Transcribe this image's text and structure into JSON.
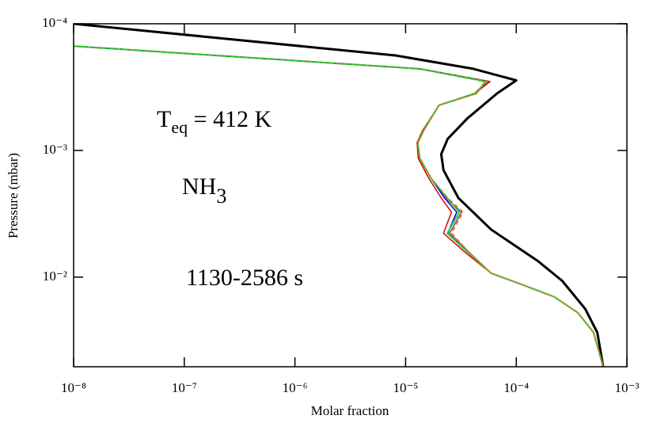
{
  "chart_data": {
    "type": "line",
    "xlabel": "Molar fraction",
    "ylabel": "Pressure (mbar)",
    "xscale": "log",
    "yscale": "log",
    "yinverted": true,
    "xlim": [
      1e-08,
      0.001
    ],
    "ylim": [
      0.0001,
      0.051
    ],
    "xticks": [
      {
        "value": 1e-08,
        "label": "10⁻⁸"
      },
      {
        "value": 1e-07,
        "label": "10⁻⁷"
      },
      {
        "value": 1e-06,
        "label": "10⁻⁶"
      },
      {
        "value": 1e-05,
        "label": "10⁻⁵"
      },
      {
        "value": 0.0001,
        "label": "10⁻⁴"
      },
      {
        "value": 0.001,
        "label": "10⁻³"
      }
    ],
    "yticks": [
      {
        "value": 0.0001,
        "label": "10⁻⁴"
      },
      {
        "value": 0.001,
        "label": "10⁻³"
      },
      {
        "value": 0.01,
        "label": "10⁻²"
      }
    ],
    "annotations": [
      {
        "parts": [
          "T",
          "eq",
          " = 412 K"
        ]
      },
      {
        "parts": [
          "NH",
          "3"
        ]
      },
      {
        "parts": [
          "1130-2586 s"
        ]
      }
    ],
    "series": [
      {
        "color": "#000000",
        "width": 3,
        "dash": false,
        "x": [
          1e-08,
          8.1e-06,
          4.1e-05,
          0.0001,
          6.7e-05,
          3.6e-05,
          2.4e-05,
          2.1e-05,
          2.2e-05,
          3e-05,
          5.9e-05,
          0.000158,
          0.00026,
          0.00042,
          0.00054,
          0.00061
        ],
        "values": [
          0.0001,
          0.000178,
          0.000227,
          0.00028,
          0.000355,
          0.00056,
          0.00081,
          0.00107,
          0.00143,
          0.00237,
          0.0042,
          0.0075,
          0.0107,
          0.0178,
          0.0274,
          0.051
        ]
      },
      {
        "color": "#7f6f8f",
        "width": 2,
        "dash": false,
        "x": [
          1e-08,
          1.34e-05,
          5.6e-05,
          4.3e-05,
          2e-05,
          1.45e-05,
          1.29e-05,
          1.34e-05,
          1.7e-05,
          2.3e-05,
          3.2e-05,
          2.5e-05,
          3.7e-05,
          5.9e-05,
          0.000114,
          0.00022,
          0.00036,
          0.0005,
          0.00061
        ],
        "values": [
          0.00015,
          0.000227,
          0.000286,
          0.000355,
          0.00044,
          0.0007,
          0.00087,
          0.00115,
          0.00166,
          0.00237,
          0.00307,
          0.0045,
          0.0063,
          0.0093,
          0.0115,
          0.0143,
          0.0191,
          0.0274,
          0.051
        ]
      },
      {
        "color": "#dd0000",
        "width": 1.5,
        "dash": false,
        "x": [
          1e-08,
          1.34e-05,
          5.8e-05,
          4.2e-05,
          2e-05,
          1.42e-05,
          1.27e-05,
          1.3e-05,
          1.62e-05,
          2.1e-05,
          2.6e-05,
          2.2e-05,
          3.4e-05,
          5.9e-05,
          0.000114,
          0.00022,
          0.00036,
          0.0005,
          0.00061
        ],
        "values": [
          0.00015,
          0.000227,
          0.000286,
          0.000355,
          0.00044,
          0.0007,
          0.00087,
          0.00115,
          0.00166,
          0.00237,
          0.00307,
          0.0045,
          0.0063,
          0.0093,
          0.0115,
          0.0143,
          0.0191,
          0.0274,
          0.051
        ]
      },
      {
        "color": "#0000ee",
        "width": 1.5,
        "dash": false,
        "x": [
          1e-08,
          1.34e-05,
          5.4e-05,
          4.2e-05,
          2e-05,
          1.45e-05,
          1.29e-05,
          1.34e-05,
          1.7e-05,
          2.25e-05,
          2.9e-05,
          2.4e-05,
          3.6e-05,
          5.9e-05,
          0.000114,
          0.00022,
          0.00036,
          0.0005,
          0.00061
        ],
        "values": [
          0.00015,
          0.000227,
          0.000286,
          0.000355,
          0.00044,
          0.0007,
          0.00087,
          0.00115,
          0.00166,
          0.00237,
          0.00307,
          0.0045,
          0.0063,
          0.0093,
          0.0115,
          0.0143,
          0.0191,
          0.0274,
          0.051
        ]
      },
      {
        "color": "#22bb22",
        "width": 1.5,
        "dash": false,
        "x": [
          1e-08,
          1.34e-05,
          5.4e-05,
          4.2e-05,
          2e-05,
          1.45e-05,
          1.29e-05,
          1.34e-05,
          1.7e-05,
          2.38e-05,
          3.05e-05,
          2.38e-05,
          3.6e-05,
          5.9e-05,
          0.000114,
          0.00022,
          0.00036,
          0.0005,
          0.00061
        ],
        "values": [
          0.00015,
          0.000227,
          0.000286,
          0.000355,
          0.00044,
          0.0007,
          0.00087,
          0.00115,
          0.00166,
          0.00237,
          0.00307,
          0.0045,
          0.0063,
          0.0093,
          0.0115,
          0.0143,
          0.0191,
          0.0274,
          0.051
        ]
      },
      {
        "color": "#ee7722",
        "width": 2,
        "dash": true,
        "x": [
          1e-08,
          1.34e-05,
          5.2e-05,
          4.4e-05,
          2e-05,
          1.45e-05,
          1.29e-05,
          1.34e-05,
          1.7e-05,
          2.4e-05,
          3.3e-05,
          2.6e-05,
          3.7e-05,
          5.9e-05,
          0.000114,
          0.00022,
          0.00036,
          0.0005,
          0.00061
        ],
        "values": [
          0.00015,
          0.000227,
          0.000286,
          0.000355,
          0.00044,
          0.0007,
          0.00087,
          0.00115,
          0.00166,
          0.00237,
          0.00307,
          0.0045,
          0.0063,
          0.0093,
          0.0115,
          0.0143,
          0.0191,
          0.0274,
          0.051
        ]
      },
      {
        "color": "#33cc33",
        "width": 2,
        "dash": true,
        "x": [
          1e-08,
          1.34e-05,
          5.4e-05,
          4.2e-05,
          2e-05,
          1.45e-05,
          1.29e-05,
          1.34e-05,
          1.7e-05,
          2.38e-05,
          3.05e-05,
          2.38e-05,
          3.6e-05,
          5.9e-05,
          0.000114,
          0.00022,
          0.00036,
          0.0005,
          0.00061
        ],
        "values": [
          0.00015,
          0.000227,
          0.000286,
          0.000355,
          0.00044,
          0.0007,
          0.00087,
          0.00115,
          0.00166,
          0.00237,
          0.00307,
          0.0045,
          0.0063,
          0.0093,
          0.0115,
          0.0143,
          0.0191,
          0.0274,
          0.051
        ]
      }
    ]
  }
}
